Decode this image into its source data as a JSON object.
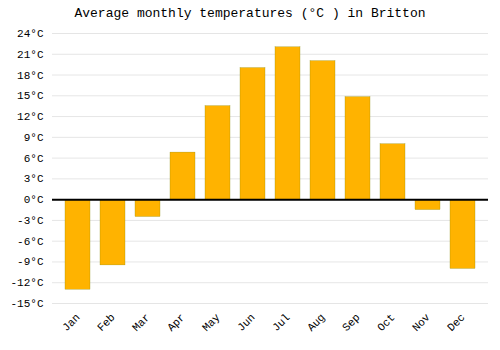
{
  "chart_data": {
    "type": "bar",
    "title": "Average monthly temperatures (°C ) in Britton",
    "categories": [
      "Jan",
      "Feb",
      "Mar",
      "Apr",
      "May",
      "Jun",
      "Jul",
      "Aug",
      "Sep",
      "Oct",
      "Nov",
      "Dec"
    ],
    "values": [
      -13,
      -9.5,
      -2.5,
      6.8,
      13.5,
      19,
      22,
      20,
      14.8,
      8,
      -1.5,
      -10
    ],
    "color": "#FFB300",
    "ylim": [
      -15,
      24
    ],
    "yticks": [
      {
        "value": -15,
        "label": "-15°C"
      },
      {
        "value": -12,
        "label": "-12°C"
      },
      {
        "value": -9,
        "label": "-9°C"
      },
      {
        "value": -6,
        "label": "-6°C"
      },
      {
        "value": -3,
        "label": "-3°C"
      },
      {
        "value": 0,
        "label": "0°C"
      },
      {
        "value": 3,
        "label": "3°C"
      },
      {
        "value": 6,
        "label": "6°C"
      },
      {
        "value": 9,
        "label": "9°C"
      },
      {
        "value": 12,
        "label": "12°C"
      },
      {
        "value": 15,
        "label": "15°C"
      },
      {
        "value": 18,
        "label": "18°C"
      },
      {
        "value": 21,
        "label": "21°C"
      },
      {
        "value": 24,
        "label": "24°C"
      }
    ],
    "grid": true
  }
}
